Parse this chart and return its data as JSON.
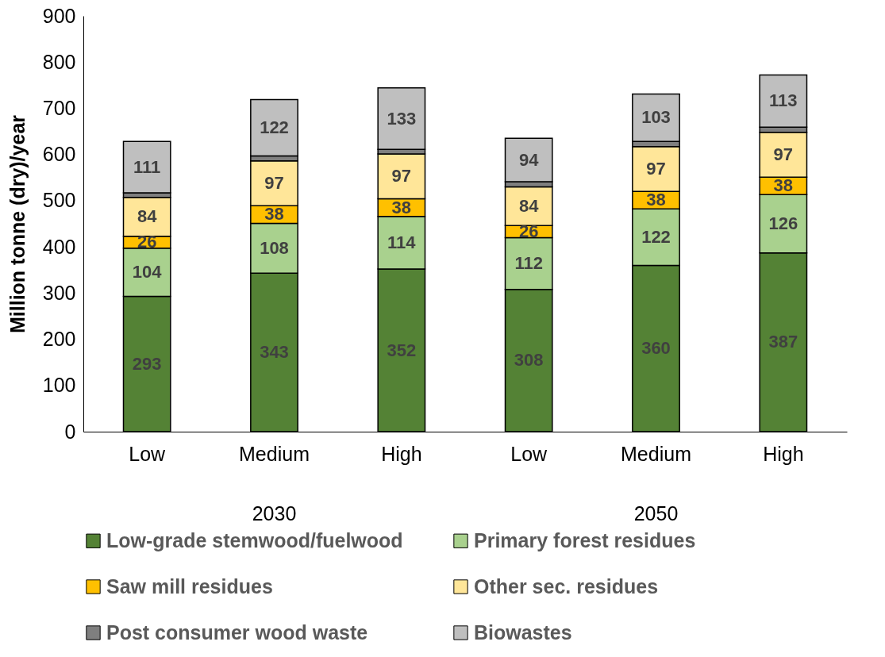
{
  "chart_data": {
    "type": "bar",
    "stacked": true,
    "ylabel": "Million tonne (dry)/year",
    "categories": [
      "Low",
      "Medium",
      "High",
      "Low",
      "Medium",
      "High"
    ],
    "annotations": [
      "2030",
      "2050"
    ],
    "ylim": [
      0,
      900
    ],
    "yticks": [
      0,
      100,
      200,
      300,
      400,
      500,
      600,
      700,
      800,
      900
    ],
    "grid": false,
    "legend": "bottom",
    "series": [
      {
        "name": "Low-grade stemwood/fuelwood",
        "color": "#548235",
        "values": [
          293,
          343,
          352,
          308,
          360,
          387
        ],
        "value_labels": [
          "293",
          "343",
          "352",
          "308",
          "360",
          "387"
        ]
      },
      {
        "name": "Primary forest residues",
        "color": "#a9d18e",
        "values": [
          104,
          108,
          114,
          112,
          122,
          126
        ],
        "value_labels": [
          "104",
          "108",
          "114",
          "112",
          "122",
          "126"
        ]
      },
      {
        "name": "Saw mill residues",
        "color": "#ffc000",
        "values": [
          26,
          38,
          38,
          26,
          38,
          38
        ],
        "value_labels": [
          "26",
          "38",
          "38",
          "26",
          "38",
          "38"
        ]
      },
      {
        "name": "Other sec. residues",
        "color": "#ffe699",
        "values": [
          84,
          97,
          97,
          84,
          97,
          97
        ],
        "value_labels": [
          "84",
          "97",
          "97",
          "84",
          "97",
          "97"
        ]
      },
      {
        "name": "Post consumer wood waste",
        "color": "#7f7f7f",
        "values": [
          10,
          11,
          10,
          11,
          11,
          11
        ],
        "value_labels": [
          null,
          null,
          null,
          null,
          null,
          null
        ]
      },
      {
        "name": "Biowastes",
        "color": "#bfbfbf",
        "values": [
          111,
          122,
          133,
          94,
          103,
          113
        ],
        "value_labels": [
          "111",
          "122",
          "133",
          "94",
          "103",
          "113"
        ]
      }
    ]
  }
}
